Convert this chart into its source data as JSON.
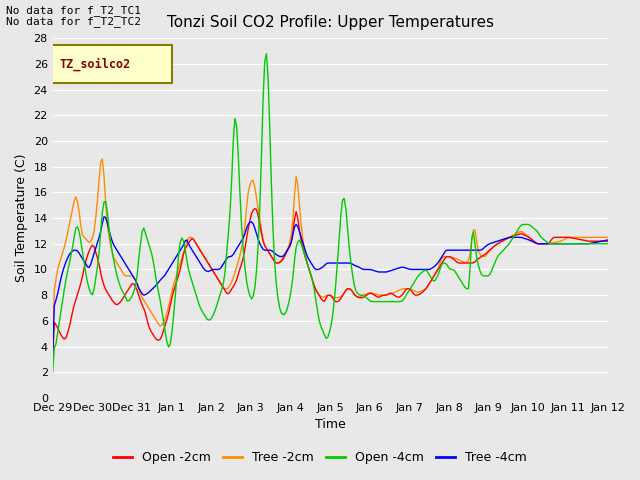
{
  "title": "Tonzi Soil CO2 Profile: Upper Temperatures",
  "xlabel": "Time",
  "ylabel": "Soil Temperature (C)",
  "ylim": [
    0,
    28
  ],
  "yticks": [
    0,
    2,
    4,
    6,
    8,
    10,
    12,
    14,
    16,
    18,
    20,
    22,
    24,
    26,
    28
  ],
  "annotation_text1": "No data for f_T2_TC1",
  "annotation_text2": "No data for f_T2_TC2",
  "legend_title": "TZ_soilco2",
  "series_labels": [
    "Open -2cm",
    "Tree -2cm",
    "Open -4cm",
    "Tree -4cm"
  ],
  "series_colors": [
    "#ff0000",
    "#ff8c00",
    "#00cc00",
    "#0000ff"
  ],
  "x_tick_labels": [
    "Dec 29",
    "Dec 30",
    "Dec 31",
    "Jan 1",
    "Jan 2",
    "Jan 3",
    "Jan 4",
    "Jan 5",
    "Jan 6",
    "Jan 7",
    "Jan 8",
    "Jan 9",
    "Jan 10",
    "Jan 11",
    "Jan 12"
  ],
  "bg_color": "#e8e8e8",
  "plot_bg_color": "#e8e8e8"
}
